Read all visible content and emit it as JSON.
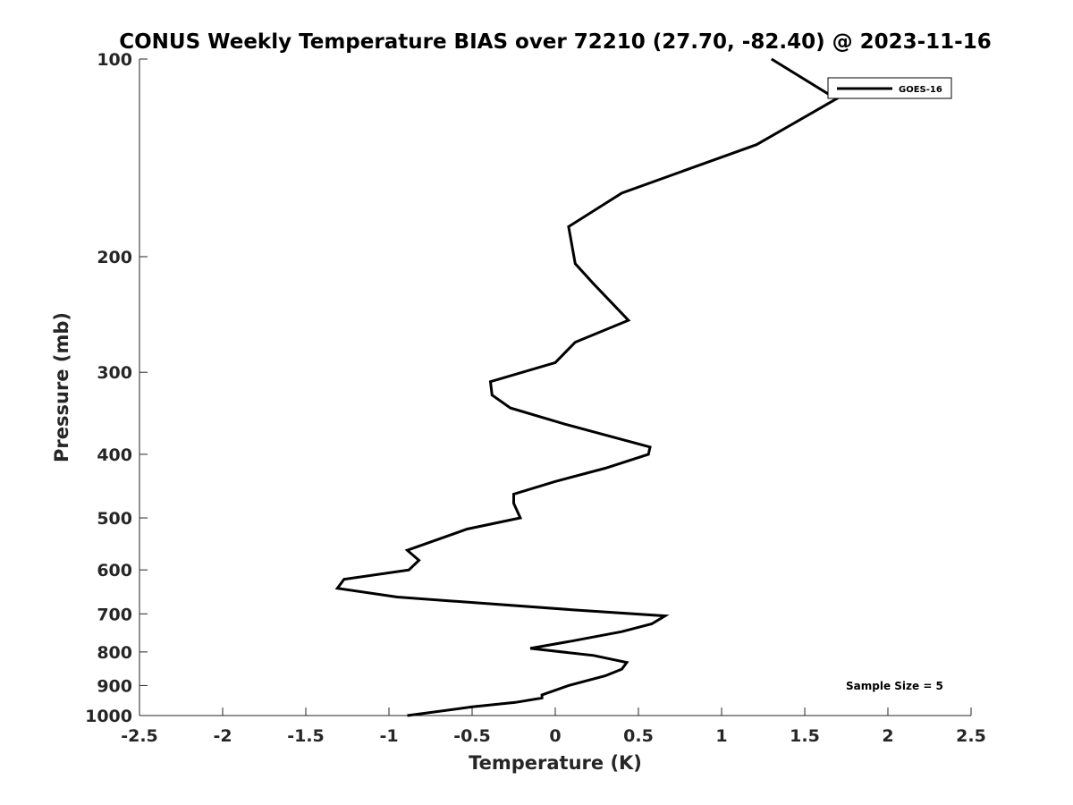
{
  "chart_data": {
    "type": "line",
    "title": "CONUS Weekly Temperature BIAS over 72210 (27.70, -82.40) @ 2023-11-16",
    "xlabel": "Temperature (K)",
    "ylabel": "Pressure (mb)",
    "xlim": [
      -2.5,
      2.5
    ],
    "ylim": [
      100,
      1000
    ],
    "yscale": "log",
    "y_reversed": true,
    "x_ticks": [
      -2.5,
      -2,
      -1.5,
      -1,
      -0.5,
      0,
      0.5,
      1,
      1.5,
      2,
      2.5
    ],
    "x_tick_labels": [
      "-2.5",
      "-2",
      "-1.5",
      "-1",
      "-0.5",
      "0",
      "0.5",
      "1",
      "1.5",
      "2",
      "2.5"
    ],
    "y_ticks": [
      100,
      200,
      300,
      400,
      500,
      600,
      700,
      800,
      900,
      1000
    ],
    "y_tick_labels": [
      "100",
      "200",
      "300",
      "400",
      "500",
      "600",
      "700",
      "800",
      "900",
      "1000"
    ],
    "grid": false,
    "legend": {
      "position": "top-right",
      "entries": [
        "GOES-16"
      ]
    },
    "annotation": "Sample Size = 5",
    "series": [
      {
        "name": "GOES-16",
        "color": "#000000",
        "points": [
          {
            "x": 1.3,
            "y": 100
          },
          {
            "x": 1.69,
            "y": 115
          },
          {
            "x": 1.21,
            "y": 135
          },
          {
            "x": 0.4,
            "y": 160
          },
          {
            "x": 0.08,
            "y": 180
          },
          {
            "x": 0.12,
            "y": 205
          },
          {
            "x": 0.23,
            "y": 220
          },
          {
            "x": 0.44,
            "y": 250
          },
          {
            "x": 0.12,
            "y": 270
          },
          {
            "x": 0.0,
            "y": 290
          },
          {
            "x": -0.39,
            "y": 310
          },
          {
            "x": -0.38,
            "y": 325
          },
          {
            "x": -0.27,
            "y": 340
          },
          {
            "x": 0.06,
            "y": 360
          },
          {
            "x": 0.57,
            "y": 390
          },
          {
            "x": 0.56,
            "y": 400
          },
          {
            "x": 0.3,
            "y": 420
          },
          {
            "x": 0.0,
            "y": 440
          },
          {
            "x": -0.25,
            "y": 460
          },
          {
            "x": -0.25,
            "y": 475
          },
          {
            "x": -0.21,
            "y": 500
          },
          {
            "x": -0.53,
            "y": 520
          },
          {
            "x": -0.89,
            "y": 560
          },
          {
            "x": -0.82,
            "y": 580
          },
          {
            "x": -0.88,
            "y": 600
          },
          {
            "x": -1.27,
            "y": 620
          },
          {
            "x": -1.31,
            "y": 640
          },
          {
            "x": -0.95,
            "y": 660
          },
          {
            "x": 0.1,
            "y": 690
          },
          {
            "x": 0.66,
            "y": 705
          },
          {
            "x": 0.58,
            "y": 725
          },
          {
            "x": 0.4,
            "y": 745
          },
          {
            "x": 0.1,
            "y": 770
          },
          {
            "x": -0.15,
            "y": 790
          },
          {
            "x": 0.23,
            "y": 810
          },
          {
            "x": 0.43,
            "y": 830
          },
          {
            "x": 0.4,
            "y": 850
          },
          {
            "x": 0.3,
            "y": 870
          },
          {
            "x": 0.08,
            "y": 900
          },
          {
            "x": -0.08,
            "y": 930
          },
          {
            "x": -0.08,
            "y": 940
          },
          {
            "x": -0.24,
            "y": 955
          },
          {
            "x": -0.5,
            "y": 970
          },
          {
            "x": -0.89,
            "y": 1000
          }
        ]
      }
    ]
  }
}
